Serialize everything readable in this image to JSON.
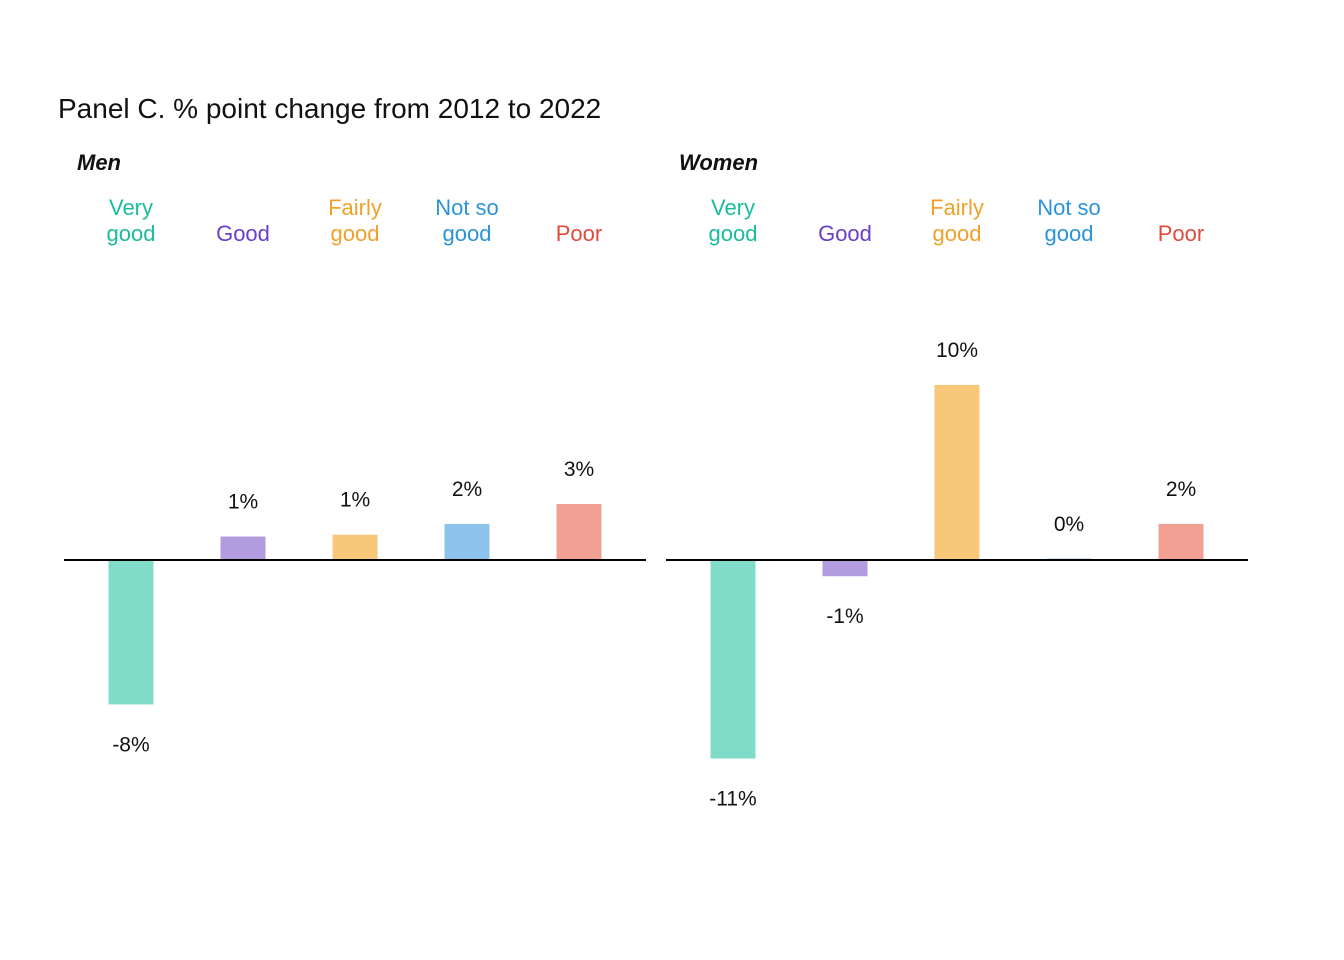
{
  "chart_data": {
    "type": "bar",
    "title": "Panel C. % point change from 2012 to 2022",
    "categories": [
      {
        "lines": [
          "Very",
          "good"
        ],
        "color": "#1abc9c",
        "bar_color": "#80dbc9"
      },
      {
        "lines": [
          "Good"
        ],
        "color": "#6a3fc8",
        "bar_color": "#b39be0"
      },
      {
        "lines": [
          "Fairly",
          "good"
        ],
        "color": "#f0a12a",
        "bar_color": "#f7c77a"
      },
      {
        "lines": [
          "Not so",
          "good"
        ],
        "color": "#2b93d9",
        "bar_color": "#8ec4eb"
      },
      {
        "lines": [
          "Poor"
        ],
        "color": "#e04a3a",
        "bar_color": "#f29f94"
      }
    ],
    "axis_color": "#000000",
    "ylim": [
      -12,
      11
    ],
    "panels": [
      {
        "name": "Men",
        "values": [
          -8.0,
          1.3,
          1.4,
          2.0,
          3.1
        ],
        "labels": [
          "-8%",
          "1%",
          "1%",
          "2%",
          "3%"
        ]
      },
      {
        "name": "Women",
        "values": [
          -11.0,
          -0.9,
          9.7,
          0.05,
          2.0
        ],
        "labels": [
          "-11%",
          "-1%",
          "10%",
          "0%",
          "2%"
        ]
      }
    ]
  }
}
